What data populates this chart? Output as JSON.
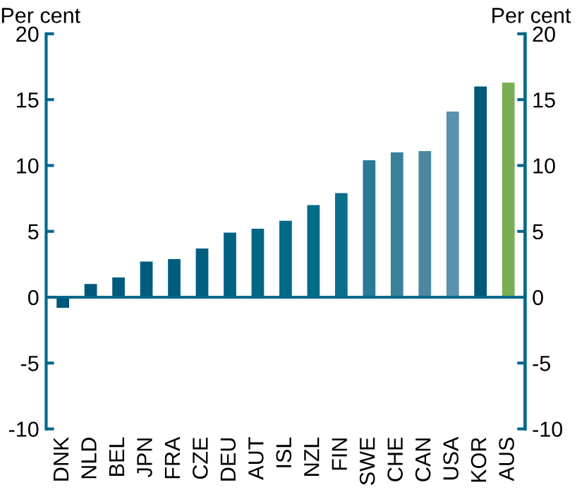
{
  "chart_data": {
    "type": "bar",
    "categories": [
      "DNK",
      "NLD",
      "BEL",
      "JPN",
      "FRA",
      "CZE",
      "DEU",
      "AUT",
      "ISL",
      "NZL",
      "FIN",
      "SWE",
      "CHE",
      "CAN",
      "USA",
      "KOR",
      "AUS"
    ],
    "values": [
      -0.8,
      1.0,
      1.5,
      2.7,
      2.9,
      3.7,
      4.9,
      5.2,
      5.8,
      7.0,
      7.9,
      10.4,
      11.0,
      11.1,
      14.1,
      16.0,
      16.3
    ],
    "colors": [
      "#00577a",
      "#00587b",
      "#005a7c",
      "#005b7d",
      "#005d7f",
      "#005f81",
      "#006283",
      "#006685",
      "#006a88",
      "#006d8b",
      "#0b6f8c",
      "#2a7b96",
      "#3b8099",
      "#4c88a0",
      "#5a91ab",
      "#00587a",
      "#7aae54"
    ],
    "ylabel": "Per cent",
    "y2label": "Per cent",
    "ylim": [
      -10,
      20
    ],
    "yticks": [
      {
        "value": -10,
        "label": "-10"
      },
      {
        "value": -5,
        "label": "-5"
      },
      0,
      5,
      10,
      15,
      20
    ],
    "y2lim": [
      -10,
      20
    ],
    "y2ticks": [
      {
        "value": -10,
        "label": "-10"
      },
      {
        "value": -5,
        "label": "-5"
      },
      0,
      5,
      10,
      15,
      20
    ],
    "ref_lines": [
      {
        "axis": "y",
        "value": 0,
        "color": "#00688c",
        "line_style": "solid"
      }
    ],
    "grid": false,
    "legend": false
  }
}
